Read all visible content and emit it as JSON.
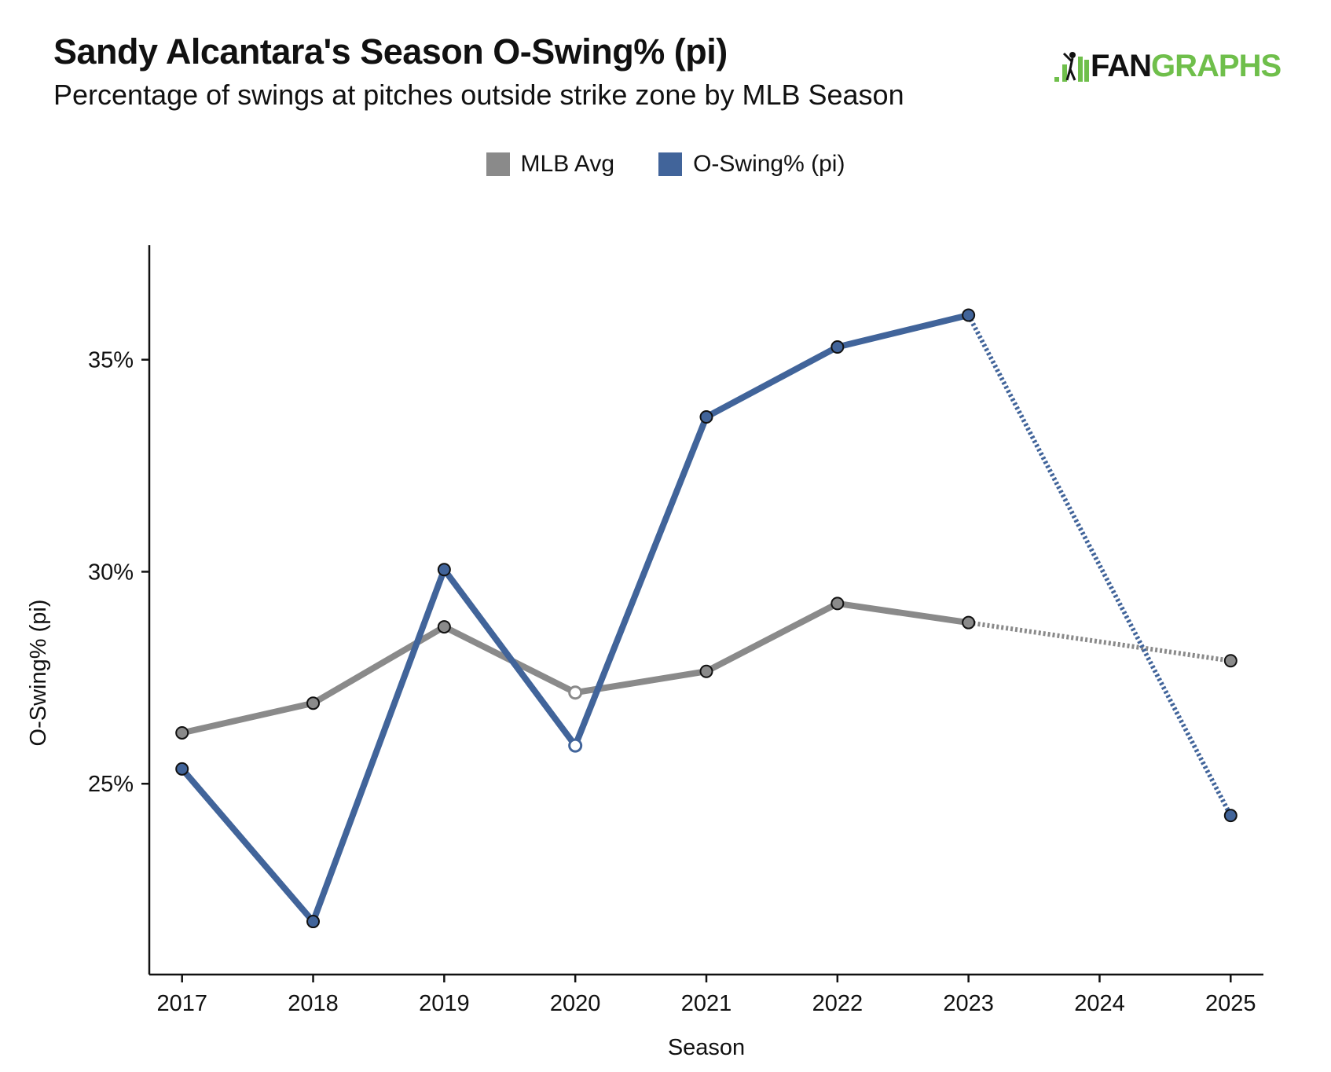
{
  "header": {
    "title": "Sandy Alcantara's Season O-Swing% (pi)",
    "subtitle": "Percentage of swings at pitches outside strike zone by MLB Season"
  },
  "logo": {
    "part1": "FAN",
    "part2": "GRAPHS",
    "green": "#6fbf4b"
  },
  "chart_data": {
    "type": "line",
    "title": "Sandy Alcantara's Season O-Swing% (pi)",
    "subtitle": "Percentage of swings at pitches outside strike zone by MLB Season",
    "xlabel": "Season",
    "ylabel": "O-Swing% (pi)",
    "x": [
      2017,
      2018,
      2019,
      2020,
      2021,
      2022,
      2023,
      2024,
      2025
    ],
    "xlim": [
      2016.75,
      2025.25
    ],
    "ylim": [
      20.5,
      37.7
    ],
    "yticks": [
      25,
      30,
      35
    ],
    "ytick_labels": [
      "25%",
      "30%",
      "35%"
    ],
    "grid": false,
    "legend_position": "top-center",
    "series": [
      {
        "name": "MLB Avg",
        "color": "#8a8a8a",
        "points": [
          {
            "x": 2017,
            "y": 26.2
          },
          {
            "x": 2018,
            "y": 26.9
          },
          {
            "x": 2019,
            "y": 28.7
          },
          {
            "x": 2020,
            "y": 27.15,
            "hollow": true
          },
          {
            "x": 2021,
            "y": 27.65
          },
          {
            "x": 2022,
            "y": 29.25
          },
          {
            "x": 2023,
            "y": 28.8
          },
          {
            "x": 2025,
            "y": 27.9
          }
        ],
        "dotted_segments": [
          [
            2023,
            2025
          ]
        ]
      },
      {
        "name": "O-Swing% (pi)",
        "color": "#41649a",
        "points": [
          {
            "x": 2017,
            "y": 25.35
          },
          {
            "x": 2018,
            "y": 21.75
          },
          {
            "x": 2019,
            "y": 30.05
          },
          {
            "x": 2020,
            "y": 25.9,
            "hollow": true
          },
          {
            "x": 2021,
            "y": 33.65
          },
          {
            "x": 2022,
            "y": 35.3
          },
          {
            "x": 2023,
            "y": 36.05
          },
          {
            "x": 2025,
            "y": 24.25
          }
        ],
        "dotted_segments": [
          [
            2023,
            2025
          ]
        ]
      }
    ]
  }
}
